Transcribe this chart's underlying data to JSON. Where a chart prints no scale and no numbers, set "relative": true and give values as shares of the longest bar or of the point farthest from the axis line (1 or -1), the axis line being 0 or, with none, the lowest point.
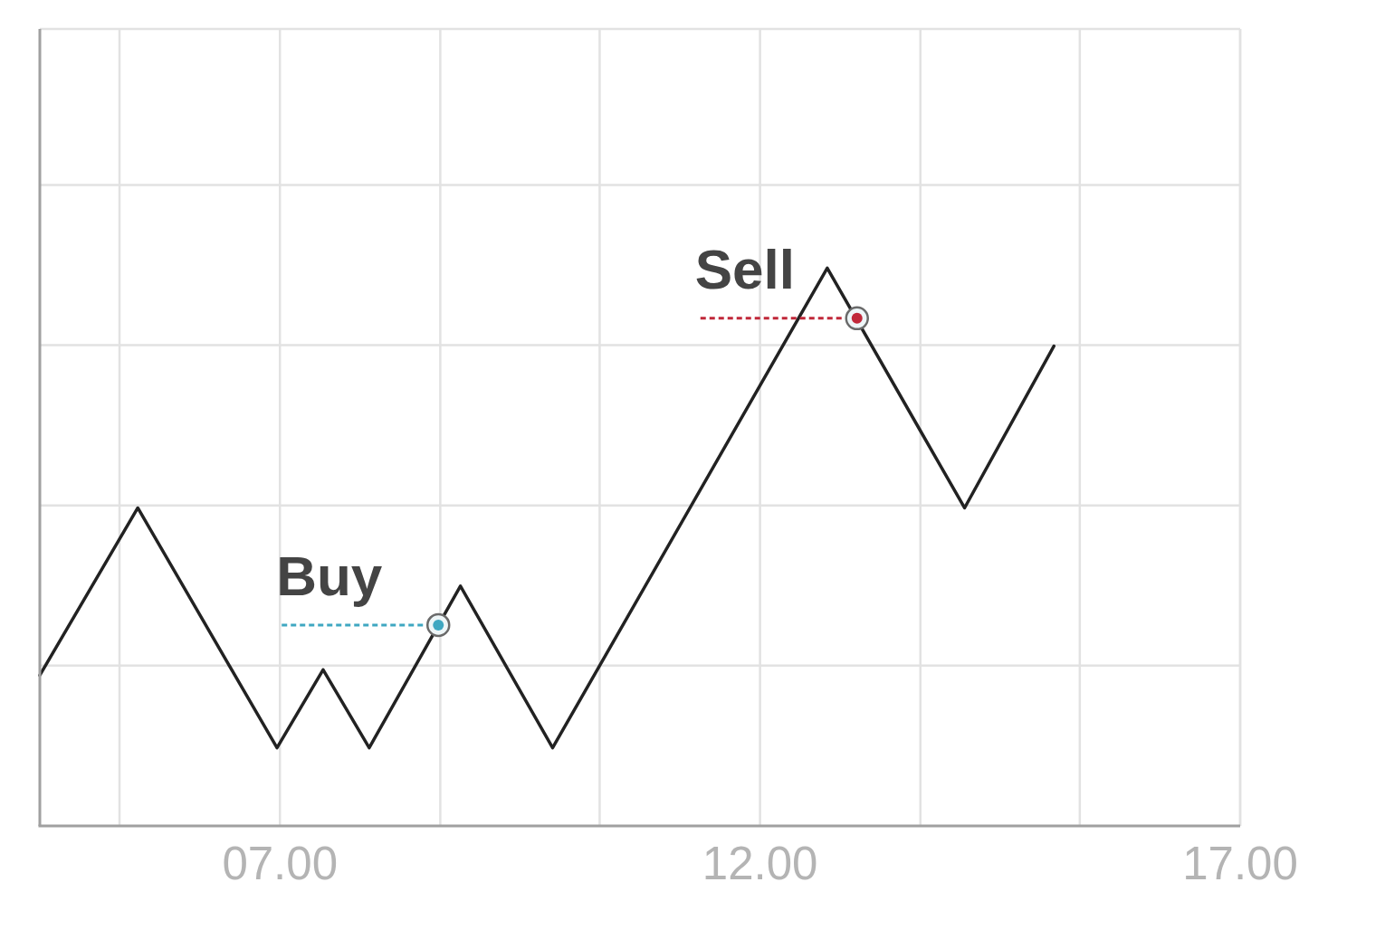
{
  "chart_data": {
    "type": "line",
    "relative": true,
    "grid": true,
    "xlim": [
      4.5,
      17
    ],
    "xticks": [
      {
        "value": 5.33,
        "label": null
      },
      {
        "value": 7,
        "label": "07.00"
      },
      {
        "value": 8.67,
        "label": null
      },
      {
        "value": 10.33,
        "label": null
      },
      {
        "value": 12,
        "label": "12.00"
      },
      {
        "value": 13.67,
        "label": null
      },
      {
        "value": 15.33,
        "label": null
      },
      {
        "value": 17,
        "label": "17.00"
      }
    ],
    "series": [
      {
        "color": "#222222",
        "x": [
          4.5,
          5.52,
          6.97,
          7.45,
          7.93,
          8.88,
          9.84,
          12.7,
          14.13,
          15.06
        ],
        "values": [
          0.27,
          0.57,
          0.14,
          0.28,
          0.14,
          0.43,
          0.14,
          1,
          0.57,
          0.86
        ]
      },
      {
        "name": "Buy",
        "type": "scatter",
        "color": "#3fa7c1",
        "x": [
          8.65
        ],
        "values": [
          0.36
        ]
      },
      {
        "name": "Sell",
        "type": "scatter",
        "color": "#c0283a",
        "x": [
          13.01
        ],
        "values": [
          0.91
        ]
      }
    ]
  }
}
